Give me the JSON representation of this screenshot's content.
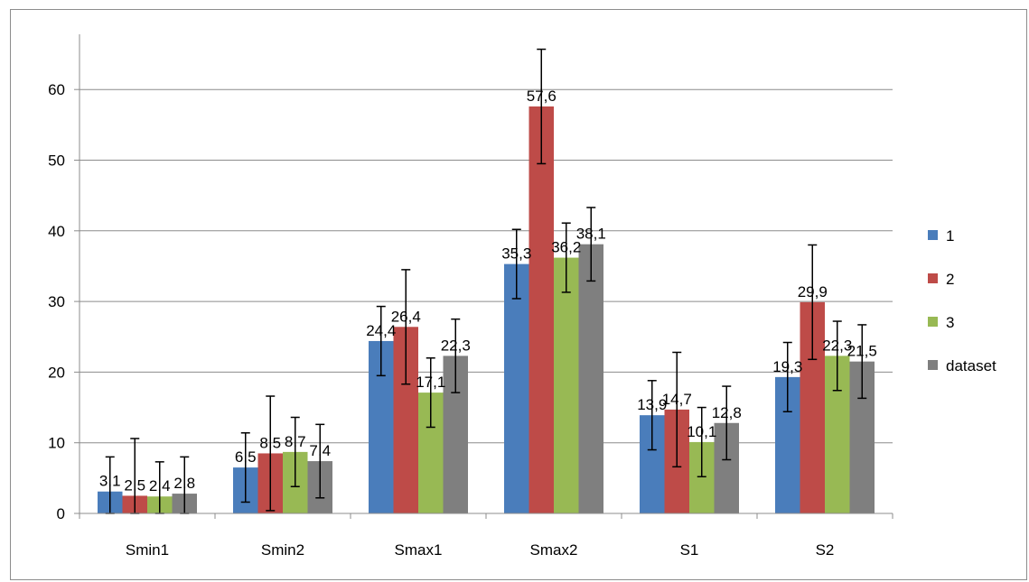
{
  "chart_data": {
    "type": "bar",
    "categories": [
      "Smin1",
      "Smin2",
      "Smax1",
      "Smax2",
      "S1",
      "S2"
    ],
    "series": [
      {
        "name": "1",
        "color": "#4a7dbb",
        "values": [
          3.1,
          6.5,
          24.4,
          35.3,
          13.9,
          19.3
        ],
        "value_labels": [
          "3,1",
          "6,5",
          "24,4",
          "35,3",
          "13,9",
          "19,3"
        ],
        "error": [
          4.9,
          4.9,
          4.9,
          4.9,
          4.9,
          4.9
        ]
      },
      {
        "name": "2",
        "color": "#be4b48",
        "values": [
          2.5,
          8.5,
          26.4,
          57.6,
          14.7,
          29.9
        ],
        "value_labels": [
          "2,5",
          "8,5",
          "26,4",
          "57,6",
          "14,7",
          "29,9"
        ],
        "error": [
          8.1,
          8.1,
          8.1,
          8.1,
          8.1,
          8.1
        ]
      },
      {
        "name": "3",
        "color": "#98b954",
        "values": [
          2.4,
          8.7,
          17.1,
          36.2,
          10.1,
          22.3
        ],
        "value_labels": [
          "2,4",
          "8,7",
          "17,1",
          "36,2",
          "10,1",
          "22,3"
        ],
        "error": [
          4.9,
          4.9,
          4.9,
          4.9,
          4.9,
          4.9
        ]
      },
      {
        "name": "dataset",
        "color": "#7f7f7f",
        "values": [
          2.8,
          7.4,
          22.3,
          38.1,
          12.8,
          21.5
        ],
        "value_labels": [
          "2,8",
          "7,4",
          "22,3",
          "38,1",
          "12,8",
          "21,5"
        ],
        "error": [
          5.2,
          5.2,
          5.2,
          5.2,
          5.2,
          5.2
        ]
      }
    ],
    "yticks": [
      0,
      10,
      20,
      30,
      40,
      50,
      60
    ],
    "ylim": [
      0,
      70
    ],
    "grid": true,
    "legend_position": "right"
  }
}
